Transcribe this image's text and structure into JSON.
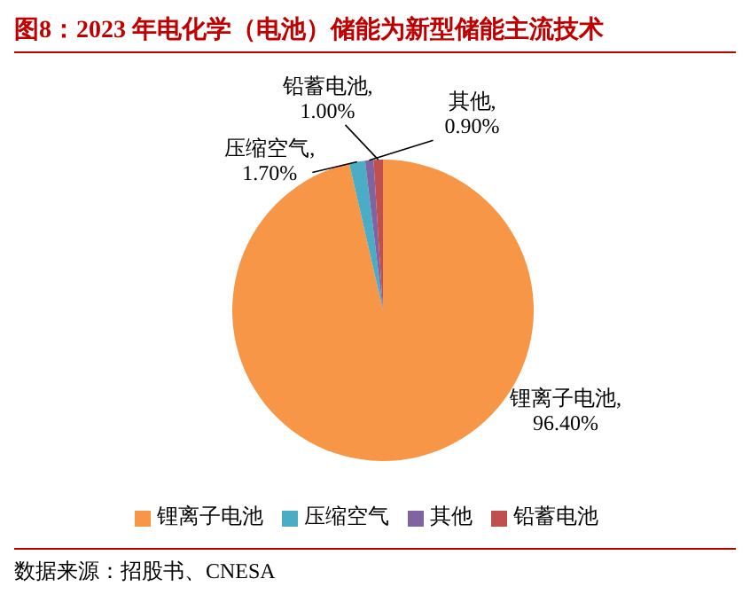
{
  "chart_data": {
    "type": "pie",
    "title": "图8：2023 年电化学（电池）储能为新型储能主流技术",
    "categories": [
      "锂离子电池",
      "压缩空气",
      "其他",
      "铅蓄电池"
    ],
    "values": [
      96.4,
      1.7,
      0.9,
      1.0
    ],
    "colors": [
      "#f79646",
      "#4bacc6",
      "#8064a2",
      "#c0504d"
    ],
    "value_labels": [
      "锂离子电池,\n96.40%",
      "压缩空气,\n1.70%",
      "其他,\n0.90%",
      "铅蓄电池,\n1.00%"
    ],
    "legend": "bottom",
    "annotations": [
      "数据来源：招股书、CNESA"
    ]
  }
}
